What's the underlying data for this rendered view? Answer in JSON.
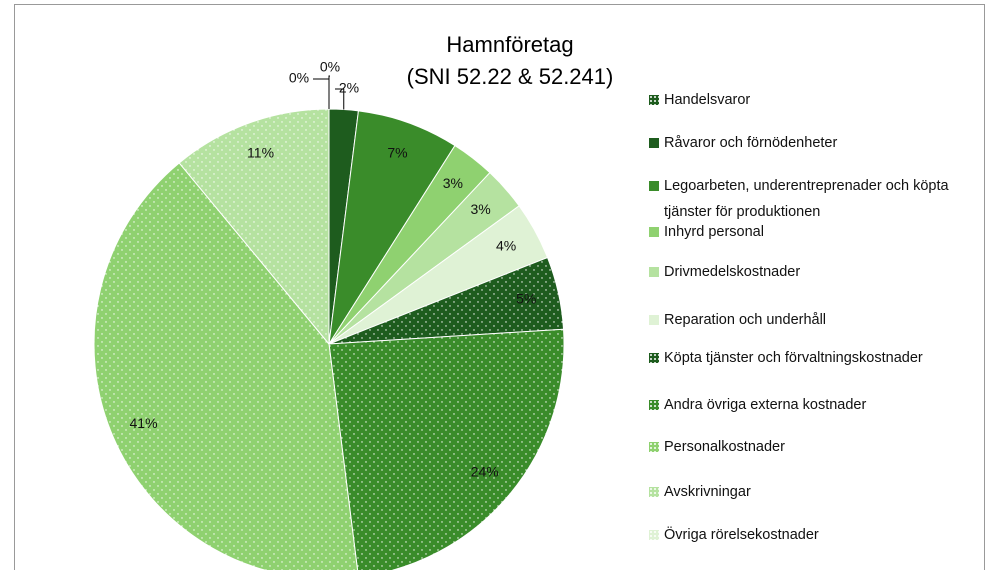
{
  "chart_data": {
    "type": "pie",
    "title": "Hamnföretag",
    "subtitle": "(SNI 52.22 & 52.241)",
    "categories": [
      "Handelsvaror",
      "Råvaror och förnödenheter",
      "Legoarbeten, underentreprenader och köpta tjänster för produktionen",
      "Inhyrd personal",
      "Drivmedelskostnader",
      "Reparation och underhåll",
      "Köpta tjänster och förvaltningskostnader",
      "Andra övriga externa kostnader",
      "Personalkostnader",
      "Avskrivningar",
      "Övriga rörelsekostnader"
    ],
    "values": [
      0,
      2,
      7,
      3,
      3,
      4,
      5,
      24,
      41,
      11,
      0
    ],
    "value_labels": [
      "0%",
      "2%",
      "7%",
      "3%",
      "3%",
      "4%",
      "5%",
      "24%",
      "41%",
      "11%",
      "0%"
    ],
    "colors": [
      "#1e5c1e",
      "#1e5c1e",
      "#3a8c2a",
      "#8fd170",
      "#b5e2a0",
      "#dff2d5",
      "#1e5c1e",
      "#3a8c2a",
      "#8fd170",
      "#b5e2a0",
      "#dff2d5"
    ],
    "patterned": [
      true,
      false,
      false,
      false,
      false,
      false,
      true,
      true,
      true,
      true,
      true
    ],
    "legend": "right"
  }
}
